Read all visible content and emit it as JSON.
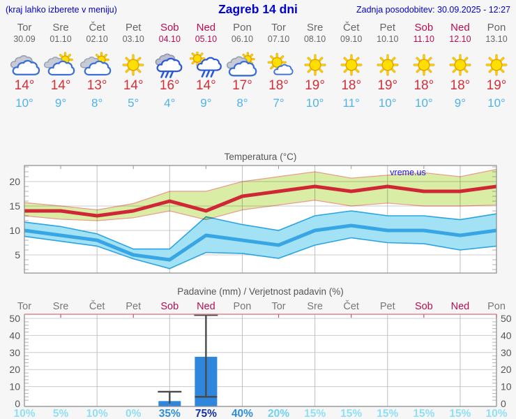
{
  "header": {
    "hint": "(kraj lahko izberete v meniju)",
    "title": "Zagreb 14 dni",
    "updated": "Zadnja posodobitev: 30.09.2025 - 12:27"
  },
  "colors": {
    "accent_blue": "#0000d0",
    "day_gray": "#666666",
    "weekend_red": "#b80d52",
    "tmax_red": "#d42f38",
    "tmin_blue": "#4fb3ea",
    "chart_text": "#555555",
    "grid": "#cccccc",
    "frame": "#8a8a8a",
    "max_line": "#cf2735",
    "max_band": "#d9eda5",
    "max_band_edge": "#eb9a8d",
    "min_line": "#38a5e4",
    "min_band": "#a3e2f5",
    "min_band_edge": "#2ba3e3",
    "bar_blue": "#2e87dd",
    "whisker": "#4a4a4a",
    "precip_top_frame": "#e2868f",
    "watermark_blue": "#1414dd",
    "prob_low": "#90e0f4",
    "prob_midlow": "#6fd2ee",
    "prob_mid": "#2f8ed9",
    "prob_high": "#1430ab"
  },
  "days": [
    {
      "name": "Tor",
      "date": "30.09",
      "weekend": false,
      "icon": "cloudy",
      "tmax": "14°",
      "tmin": "10°"
    },
    {
      "name": "Sre",
      "date": "01.10",
      "weekend": false,
      "icon": "partly-cloudy",
      "tmax": "14°",
      "tmin": "9°"
    },
    {
      "name": "Čet",
      "date": "02.10",
      "weekend": false,
      "icon": "partly-cloudy",
      "tmax": "13°",
      "tmin": "8°"
    },
    {
      "name": "Pet",
      "date": "03.10",
      "weekend": false,
      "icon": "sunny",
      "tmax": "14°",
      "tmin": "5°"
    },
    {
      "name": "Sob",
      "date": "04.10",
      "weekend": true,
      "icon": "rain",
      "tmax": "16°",
      "tmin": "4°"
    },
    {
      "name": "Ned",
      "date": "05.10",
      "weekend": true,
      "icon": "sun-rain",
      "tmax": "14°",
      "tmin": "9°"
    },
    {
      "name": "Pon",
      "date": "06.10",
      "weekend": false,
      "icon": "mostly-cloudy",
      "tmax": "17°",
      "tmin": "8°"
    },
    {
      "name": "Tor",
      "date": "07.10",
      "weekend": false,
      "icon": "sun-cloud",
      "tmax": "18°",
      "tmin": "7°"
    },
    {
      "name": "Sre",
      "date": "08.10",
      "weekend": false,
      "icon": "sunny",
      "tmax": "19°",
      "tmin": "10°"
    },
    {
      "name": "Čet",
      "date": "09.10",
      "weekend": false,
      "icon": "sunny",
      "tmax": "18°",
      "tmin": "11°"
    },
    {
      "name": "Pet",
      "date": "10.10",
      "weekend": false,
      "icon": "sunny",
      "tmax": "19°",
      "tmin": "10°"
    },
    {
      "name": "Sob",
      "date": "11.10",
      "weekend": true,
      "icon": "sunny",
      "tmax": "18°",
      "tmin": "10°"
    },
    {
      "name": "Ned",
      "date": "12.10",
      "weekend": true,
      "icon": "sunny",
      "tmax": "18°",
      "tmin": "9°"
    },
    {
      "name": "Pon",
      "date": "13.10",
      "weekend": false,
      "icon": "sunny",
      "tmax": "19°",
      "tmin": "10°"
    }
  ],
  "chart_data": [
    {
      "type": "line",
      "title": "Temperatura (°C)",
      "watermark": "vreme.us",
      "categories": [
        "Tor",
        "Sre",
        "Čet",
        "Pet",
        "Sob",
        "Ned",
        "Pon",
        "Tor",
        "Sre",
        "Čet",
        "Pet",
        "Sob",
        "Ned",
        "Pon"
      ],
      "ylim": [
        1.3,
        23.3
      ],
      "yticks": [
        5,
        10,
        15,
        20
      ],
      "grid": true,
      "legend": "none",
      "series": [
        {
          "name": "max temperature",
          "values": [
            14,
            14,
            13,
            14,
            16,
            14,
            17,
            18,
            19,
            18,
            19,
            18,
            18,
            19
          ]
        },
        {
          "name": "min temperature",
          "values": [
            10,
            9,
            8,
            5,
            4,
            9,
            8,
            7,
            10,
            11,
            10,
            10,
            9,
            10
          ]
        }
      ],
      "bands": [
        {
          "name": "max range",
          "upper": [
            15.7,
            15,
            14.2,
            15.5,
            18,
            18,
            20,
            21,
            22,
            20.7,
            21.3,
            21.8,
            21,
            22.5
          ],
          "lower": [
            13,
            12.3,
            12,
            12.6,
            14,
            12.2,
            14.2,
            15.2,
            16.2,
            15,
            15.6,
            15,
            15,
            15.2
          ]
        },
        {
          "name": "min range",
          "upper": [
            11.7,
            10.8,
            9.3,
            6.2,
            6.2,
            12.8,
            11.2,
            10,
            13,
            14,
            13,
            13,
            12.2,
            13.4
          ],
          "lower": [
            8.8,
            7.8,
            6.8,
            4.2,
            2.2,
            5.5,
            5.3,
            4.3,
            7,
            8.5,
            7.5,
            7.3,
            6,
            6.8
          ]
        }
      ]
    },
    {
      "type": "bar",
      "title": "Padavine (mm) / Verjetnost padavin (%)",
      "categories": [
        "Tor",
        "Sre",
        "Čet",
        "Pet",
        "Sob",
        "Ned",
        "Pon",
        "Tor",
        "Sre",
        "Čet",
        "Pet",
        "Sob",
        "Ned",
        "Pon"
      ],
      "weekend_flags": [
        false,
        false,
        false,
        false,
        true,
        true,
        false,
        false,
        false,
        false,
        false,
        true,
        true,
        false
      ],
      "ylim": [
        0,
        52
      ],
      "yticks": [
        0,
        10,
        20,
        30,
        40,
        50
      ],
      "values": [
        0,
        0,
        0,
        0,
        1.5,
        27.5,
        0,
        0,
        0,
        0,
        0,
        0,
        0,
        0
      ],
      "whisker_low": [
        null,
        null,
        null,
        null,
        0,
        4,
        null,
        null,
        null,
        null,
        null,
        null,
        null,
        null
      ],
      "whisker_high": [
        null,
        null,
        null,
        null,
        7,
        52,
        null,
        null,
        null,
        null,
        null,
        null,
        null,
        null
      ],
      "probabilities": [
        "10%",
        "5%",
        "10%",
        "0%",
        "35%",
        "75%",
        "40%",
        "20%",
        "15%",
        "15%",
        "15%",
        "15%",
        "15%",
        "10%"
      ]
    }
  ]
}
